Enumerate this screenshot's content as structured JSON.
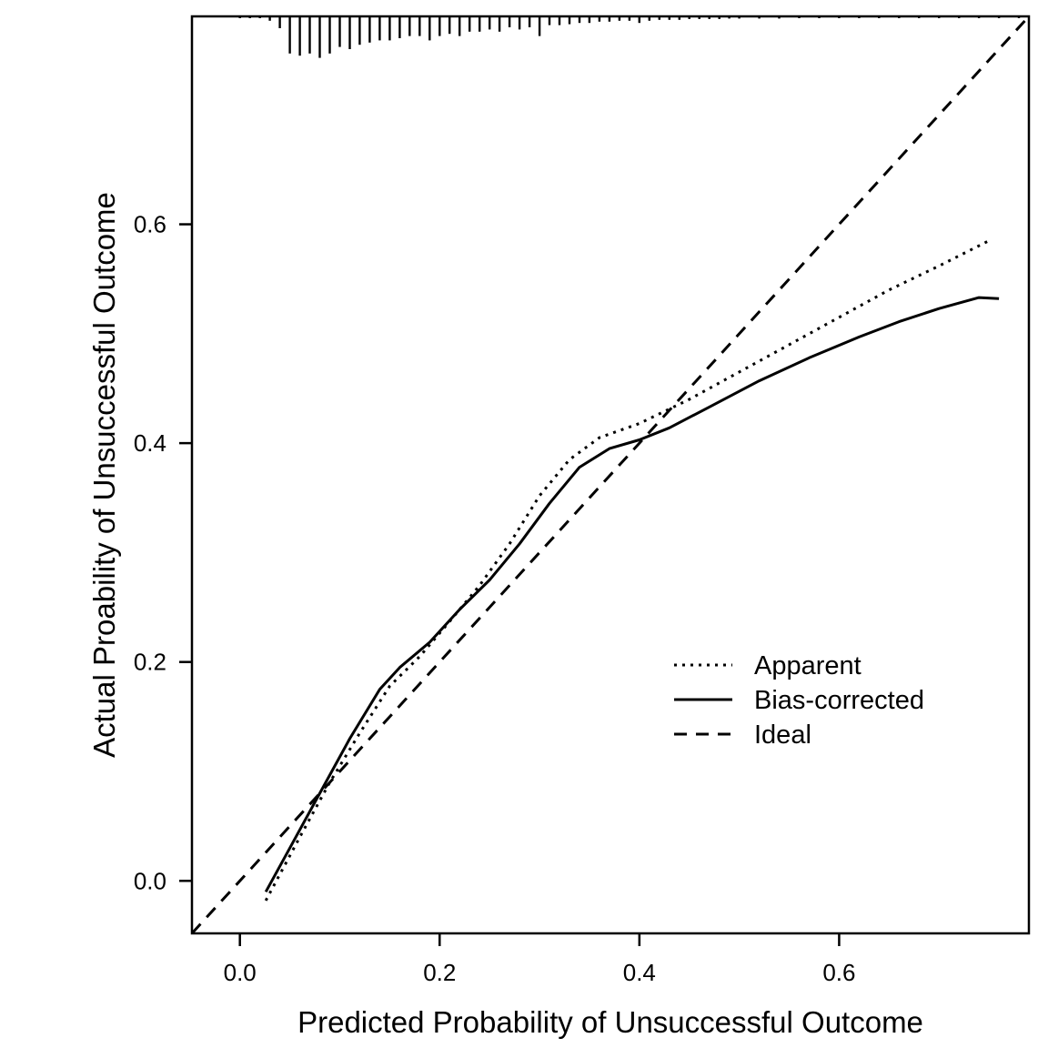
{
  "chart_data": {
    "type": "line",
    "xlabel": "Predicted Probability of Unsuccessful Outcome",
    "ylabel": "Actual Proability of Unsuccessful Outcome",
    "xlim": [
      -0.048,
      0.79
    ],
    "ylim": [
      -0.048,
      0.79
    ],
    "x_ticks": [
      0.0,
      0.2,
      0.4,
      0.6
    ],
    "x_tick_labels": [
      "0.0",
      "0.2",
      "0.4",
      "0.6"
    ],
    "y_ticks": [
      0.0,
      0.2,
      0.4,
      0.6
    ],
    "y_tick_labels": [
      "0.0",
      "0.2",
      "0.4",
      "0.6"
    ],
    "grid": false,
    "legend_position": "lower-right",
    "series": [
      {
        "name": "Apparent",
        "style": "dotted",
        "x": [
          0.026,
          0.06,
          0.09,
          0.12,
          0.15,
          0.18,
          0.21,
          0.24,
          0.27,
          0.3,
          0.33,
          0.36,
          0.4,
          0.45,
          0.5,
          0.55,
          0.6,
          0.65,
          0.7,
          0.75
        ],
        "y": [
          -0.018,
          0.04,
          0.09,
          0.135,
          0.178,
          0.205,
          0.237,
          0.27,
          0.308,
          0.352,
          0.385,
          0.405,
          0.418,
          0.44,
          0.465,
          0.49,
          0.515,
          0.54,
          0.562,
          0.585
        ]
      },
      {
        "name": "Bias-corrected",
        "style": "solid",
        "x": [
          0.026,
          0.05,
          0.08,
          0.11,
          0.14,
          0.16,
          0.19,
          0.22,
          0.25,
          0.28,
          0.31,
          0.34,
          0.37,
          0.4,
          0.43,
          0.47,
          0.52,
          0.57,
          0.62,
          0.66,
          0.7,
          0.74,
          0.76
        ],
        "y": [
          -0.01,
          0.03,
          0.08,
          0.13,
          0.175,
          0.195,
          0.218,
          0.248,
          0.275,
          0.308,
          0.345,
          0.378,
          0.395,
          0.403,
          0.414,
          0.433,
          0.457,
          0.478,
          0.497,
          0.511,
          0.523,
          0.533,
          0.532
        ]
      },
      {
        "name": "Ideal",
        "style": "dashed",
        "x": [
          -0.048,
          0.79
        ],
        "y": [
          -0.048,
          0.79
        ]
      }
    ],
    "rug": {
      "x": [
        0.0,
        0.01,
        0.02,
        0.03,
        0.04,
        0.05,
        0.06,
        0.07,
        0.08,
        0.09,
        0.1,
        0.11,
        0.12,
        0.13,
        0.14,
        0.15,
        0.16,
        0.17,
        0.18,
        0.19,
        0.2,
        0.21,
        0.22,
        0.23,
        0.24,
        0.25,
        0.26,
        0.27,
        0.28,
        0.29,
        0.3,
        0.31,
        0.32,
        0.33,
        0.34,
        0.35,
        0.36,
        0.37,
        0.38,
        0.39,
        0.4,
        0.41,
        0.42,
        0.43,
        0.44,
        0.45,
        0.46,
        0.47,
        0.48,
        0.49,
        0.5,
        0.52,
        0.54,
        0.56,
        0.58,
        0.6,
        0.62,
        0.64,
        0.66,
        0.68,
        0.7,
        0.72,
        0.74,
        0.76,
        0.78
      ],
      "weight": [
        0.03,
        0.02,
        0.03,
        0.1,
        0.27,
        0.85,
        0.9,
        0.85,
        0.95,
        0.85,
        0.7,
        0.75,
        0.65,
        0.6,
        0.55,
        0.55,
        0.5,
        0.45,
        0.45,
        0.55,
        0.45,
        0.4,
        0.45,
        0.35,
        0.35,
        0.3,
        0.35,
        0.25,
        0.3,
        0.25,
        0.45,
        0.2,
        0.2,
        0.18,
        0.15,
        0.15,
        0.12,
        0.12,
        0.1,
        0.1,
        0.15,
        0.1,
        0.08,
        0.08,
        0.08,
        0.06,
        0.06,
        0.06,
        0.06,
        0.05,
        0.05,
        0.05,
        0.05,
        0.04,
        0.04,
        0.04,
        0.04,
        0.04,
        0.04,
        0.04,
        0.04,
        0.04,
        0.04,
        0.04,
        0.04
      ]
    }
  }
}
